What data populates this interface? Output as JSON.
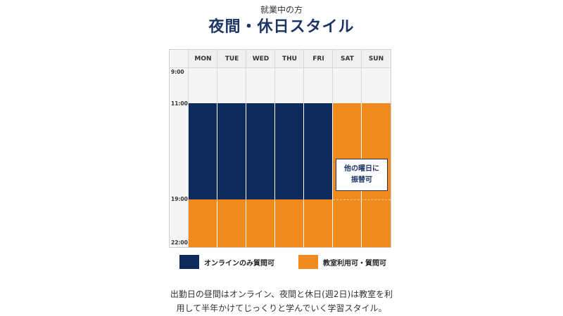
{
  "header": {
    "subtitle": "就業中の方",
    "title": "夜間・休日スタイル"
  },
  "schedule": {
    "days": [
      "MON",
      "TUE",
      "WED",
      "THU",
      "FRI",
      "SAT",
      "SUN"
    ],
    "times": [
      "9:00",
      "11:00",
      "19:00",
      "22:00"
    ],
    "blocks": [
      {
        "days": [
          "MON",
          "TUE",
          "WED",
          "THU",
          "FRI"
        ],
        "from": "11:00",
        "to": "19:00",
        "type": "online"
      },
      {
        "days": [
          "MON",
          "TUE",
          "WED",
          "THU",
          "FRI"
        ],
        "from": "19:00",
        "to": "22:00",
        "type": "class"
      },
      {
        "days": [
          "SAT",
          "SUN"
        ],
        "from": "11:00",
        "to": "22:00",
        "type": "class"
      }
    ],
    "note_line1": "他の曜日に",
    "note_line2": "振替可"
  },
  "legend": {
    "online_label": "オンラインのみ質問可",
    "class_label": "教室利用可・質問可",
    "online_color": "#0f2a5c",
    "class_color": "#f08a1c"
  },
  "description": {
    "line1": "出勤日の昼間はオンライン、夜間と休日(週2日)は教室を利",
    "line2": "用して半年かけてじっくりと学んでいく学習スタイル。"
  }
}
